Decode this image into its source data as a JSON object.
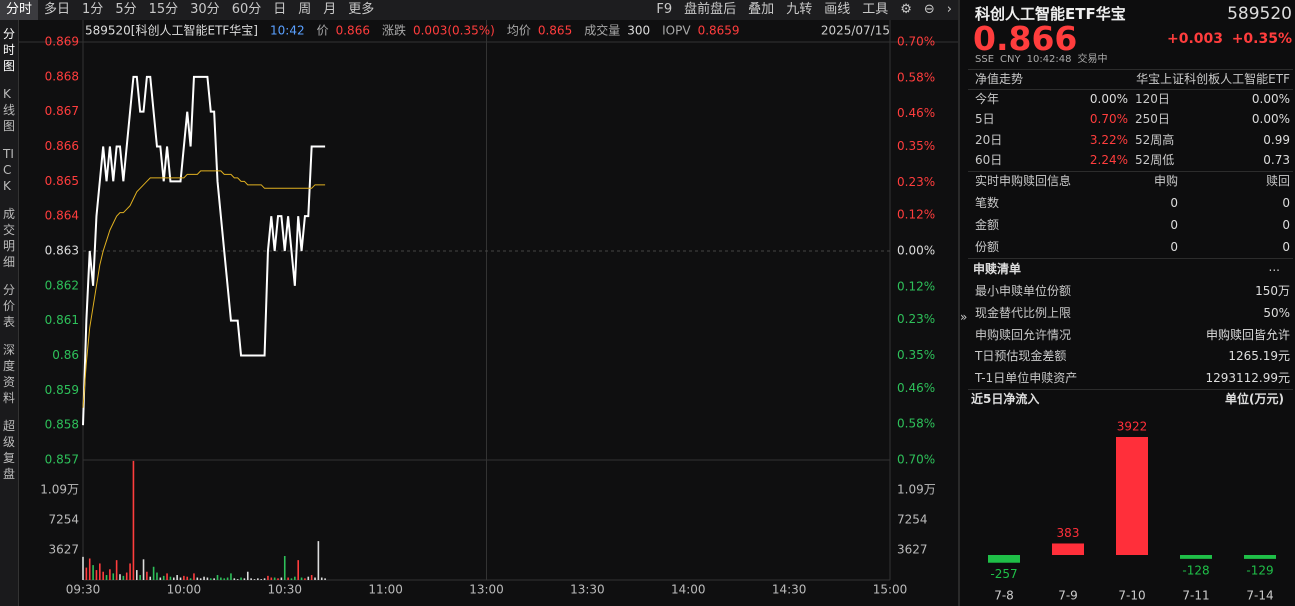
{
  "toolbar": {
    "tabs": [
      "分时",
      "多日",
      "1分",
      "5分",
      "15分",
      "30分",
      "60分",
      "日",
      "周",
      "月",
      "更多"
    ],
    "tools": [
      "F9",
      "盘前盘后",
      "叠加",
      "九转",
      "画线",
      "工具"
    ]
  },
  "sidebar": [
    "分时图",
    "K线图",
    "TICK",
    "成交明细",
    "分价表",
    "深度资料",
    "超级复盘"
  ],
  "quote_header": {
    "name": "589520[科创人工智能ETF华宝]",
    "time": "10:42",
    "price_label": "价",
    "price": "0.866",
    "change_label": "涨跌",
    "change": "0.003(0.35%)",
    "avg_label": "均价",
    "avg": "0.865",
    "volume_label": "成交量",
    "volume": "300",
    "iopv_label": "IOPV",
    "iopv": "0.8659",
    "date": "2025/07/15"
  },
  "chart_data": [
    {
      "type": "line",
      "series": [
        {
          "color": "#ffffff",
          "values": [
            0.858,
            0.861,
            0.863,
            0.862,
            0.864,
            0.865,
            0.866,
            0.865,
            0.866,
            0.865,
            0.866,
            0.866,
            0.865,
            0.866,
            0.867,
            0.868,
            0.868,
            0.867,
            0.867,
            0.868,
            0.868,
            0.867,
            0.866,
            0.866,
            0.865,
            0.866,
            0.865,
            0.865,
            0.865,
            0.865,
            0.866,
            0.867,
            0.866,
            0.868,
            0.868,
            0.868,
            0.868,
            0.868,
            0.867,
            0.867,
            0.865,
            0.864,
            0.863,
            0.862,
            0.861,
            0.861,
            0.861,
            0.86,
            0.86,
            0.86,
            0.86,
            0.86,
            0.86,
            0.86,
            0.86,
            0.863,
            0.864,
            0.863,
            0.864,
            0.864,
            0.863,
            0.864,
            0.863,
            0.862,
            0.864,
            0.863,
            0.864,
            0.864,
            0.866,
            0.866,
            0.866,
            0.866,
            0.866
          ]
        },
        {
          "color": "#e0b020",
          "values": [
            0.8585,
            0.8598,
            0.8608,
            0.8614,
            0.862,
            0.8626,
            0.863,
            0.8633,
            0.8636,
            0.8638,
            0.864,
            0.8641,
            0.8641,
            0.8642,
            0.8643,
            0.8645,
            0.8647,
            0.8648,
            0.8649,
            0.865,
            0.8651,
            0.8651,
            0.8651,
            0.8651,
            0.8651,
            0.8651,
            0.8651,
            0.8651,
            0.8651,
            0.8651,
            0.8651,
            0.8652,
            0.8652,
            0.8652,
            0.8652,
            0.8653,
            0.8653,
            0.8653,
            0.8653,
            0.8653,
            0.8653,
            0.8653,
            0.8652,
            0.8652,
            0.8652,
            0.8651,
            0.8651,
            0.865,
            0.865,
            0.8649,
            0.8649,
            0.8649,
            0.8649,
            0.8649,
            0.8648,
            0.8648,
            0.8648,
            0.8648,
            0.8648,
            0.8648,
            0.8648,
            0.8648,
            0.8648,
            0.8648,
            0.8648,
            0.8648,
            0.8648,
            0.8648,
            0.8648,
            0.8649,
            0.8649,
            0.8649,
            0.8649
          ]
        }
      ],
      "ylim": [
        0.857,
        0.869
      ],
      "yticks": [
        0.869,
        0.868,
        0.867,
        0.866,
        0.865,
        0.864,
        0.863,
        0.862,
        0.861,
        0.86,
        0.859,
        0.858,
        0.857
      ],
      "y2lim": [
        -0.7,
        0.7
      ],
      "y2ticks": [
        {
          "value": 0.7,
          "label": "0.70%"
        },
        {
          "value": 0.58,
          "label": "0.58%"
        },
        {
          "value": 0.46,
          "label": "0.46%"
        },
        {
          "value": 0.35,
          "label": "0.35%"
        },
        {
          "value": 0.23,
          "label": "0.23%"
        },
        {
          "value": 0.12,
          "label": "0.12%"
        },
        {
          "value": 0.0,
          "label": "0.00%"
        },
        {
          "value": -0.12,
          "label": "0.12%"
        },
        {
          "value": -0.23,
          "label": "0.23%"
        },
        {
          "value": -0.35,
          "label": "0.35%"
        },
        {
          "value": -0.46,
          "label": "0.46%"
        },
        {
          "value": -0.58,
          "label": "0.58%"
        },
        {
          "value": -0.7,
          "label": "0.70%"
        }
      ],
      "x_labels": [
        "09:30",
        "10:00",
        "10:30",
        "11:00",
        "13:00",
        "13:30",
        "14:00",
        "14:30",
        "15:00"
      ],
      "up_color": "#ff3d3d",
      "down_color": "#2ec05a"
    },
    {
      "type": "bar",
      "values": [
        2800,
        1500,
        2600,
        1800,
        1200,
        2000,
        1000,
        600,
        1300,
        800,
        2400,
        700,
        500,
        900,
        2000,
        14400,
        1200,
        600,
        2500,
        1000,
        400,
        1600,
        900,
        300,
        500,
        800,
        400,
        300,
        600,
        300,
        500,
        400,
        200,
        800,
        300,
        200,
        400,
        300,
        200,
        200,
        600,
        300,
        200,
        300,
        800,
        200,
        100,
        300,
        200,
        1000,
        200,
        100,
        200,
        100,
        200,
        500,
        300,
        300,
        200,
        300,
        2900,
        300,
        200,
        400,
        2400,
        300,
        200,
        400,
        600,
        300,
        4700,
        300,
        200
      ],
      "ylim": [
        0,
        14508
      ],
      "yticks": [
        {
          "value": 10881,
          "label": "1.09万"
        },
        7254,
        3627
      ]
    },
    {
      "type": "bar",
      "categories": [
        "7-8",
        "7-9",
        "7-10",
        "7-11",
        "7-14"
      ],
      "values": [
        -257,
        383,
        3922,
        -128,
        -129
      ],
      "up_color": "#ff2f3a",
      "down_color": "#1fbf48"
    }
  ],
  "panel": {
    "title": "科创人工智能ETF华宝",
    "code": "589520",
    "price": "0.866",
    "change": "+0.003",
    "change_pct": "+0.35%",
    "meta": [
      "SSE",
      "CNY",
      "10:42:48",
      "交易中"
    ],
    "nav_label": "净值走势",
    "index_name": "华宝上证科创板人工智能ETF",
    "returns": [
      [
        "今年",
        "0.00%",
        "120日",
        "0.00%"
      ],
      [
        "5日",
        "0.70%",
        "250日",
        "0.00%"
      ],
      [
        "20日",
        "3.22%",
        "52周高",
        "0.99"
      ],
      [
        "60日",
        "2.24%",
        "52周低",
        "0.73"
      ]
    ],
    "sr_info": {
      "title": "实时申购赎回信息",
      "cols": [
        "申购",
        "赎回"
      ],
      "rows": [
        [
          "笔数",
          "0",
          "0"
        ],
        [
          "金额",
          "0",
          "0"
        ],
        [
          "份额",
          "0",
          "0"
        ]
      ]
    },
    "list": {
      "title": "申赎清单",
      "more": "...",
      "rows": [
        [
          "最小申赎单位份额",
          "150万"
        ],
        [
          "现金替代比例上限",
          "50%"
        ],
        [
          "申购赎回允许情况",
          "申购赎回皆允许"
        ],
        [
          "T日预估现金差额",
          "1265.19元"
        ],
        [
          "T-1日单位申赎资产",
          "1293112.99元"
        ]
      ]
    },
    "flow_title": "近5日净流入",
    "flow_unit": "单位(万元)"
  }
}
